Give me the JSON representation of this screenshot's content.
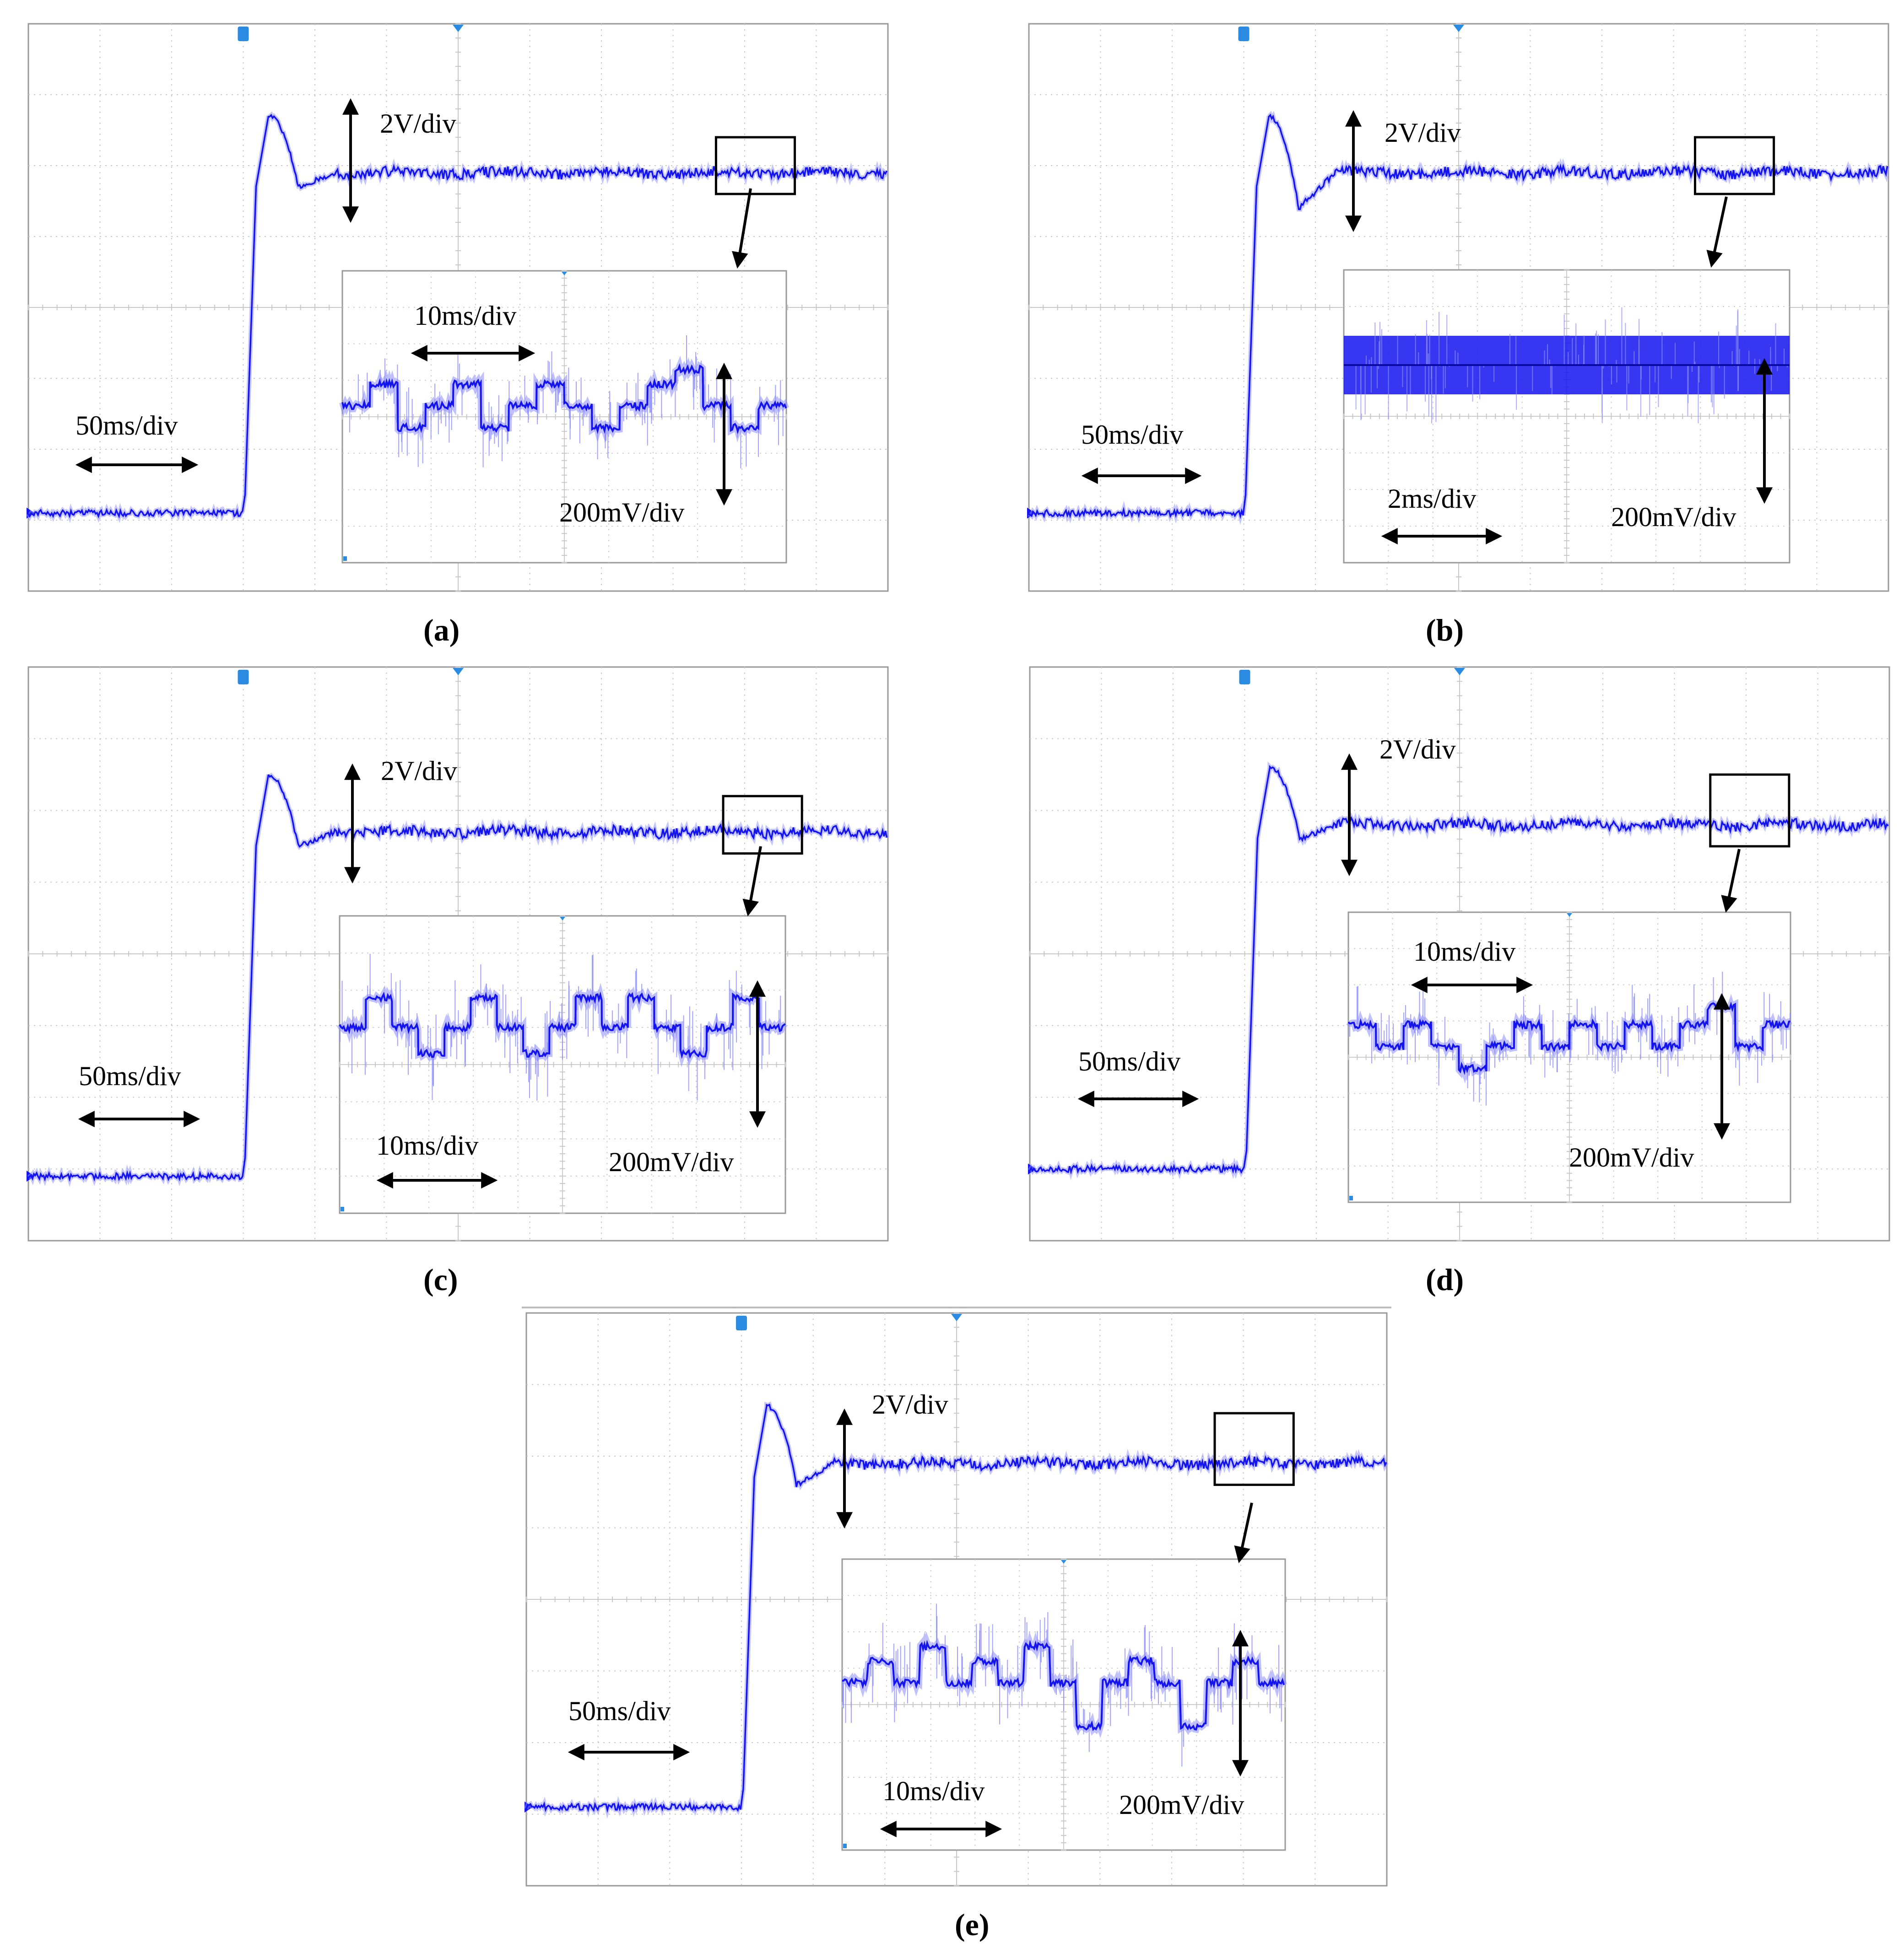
{
  "colors": {
    "trace": "#1414f0",
    "trace_light": "#8c8cff",
    "grid": "#c8c8c8",
    "frame": "#9a9a9a",
    "marker": "#2a8be0",
    "annotation": "#000000"
  },
  "chart_data": [
    {
      "type": "line",
      "panel": "a",
      "caption": "(a)",
      "main": {
        "time_scale": "50ms/div",
        "volt_scale": "2V/div",
        "grid_divisions": [
          12,
          8
        ],
        "x_divisions": [
          0,
          12
        ],
        "y_divisions": [
          0,
          8
        ],
        "step_at_div": 3.0,
        "initial_level_div": 1.1,
        "final_level_div": 5.9,
        "overshoot_div": 6.7,
        "settle_div": 3.9,
        "undershoot_div": 5.7
      },
      "inset": {
        "time_scale": "10ms/div",
        "volt_scale": "200mV/div",
        "x_divisions": [
          0,
          10
        ],
        "y_divisions": [
          0,
          8
        ],
        "levels_div": [
          4.3,
          4.9,
          3.7,
          4.3,
          4.9,
          3.7,
          4.3,
          4.9,
          4.3,
          3.7,
          4.3,
          4.9,
          5.3,
          4.3,
          3.7,
          4.3
        ],
        "spike_range_div": 1.4
      },
      "zoom_box_main_div": {
        "x": [
          9.6,
          10.7
        ],
        "y": [
          5.6,
          6.4
        ]
      }
    },
    {
      "type": "line",
      "panel": "b",
      "caption": "(b)",
      "main": {
        "time_scale": "50ms/div",
        "volt_scale": "2V/div",
        "grid_divisions": [
          12,
          8
        ],
        "x_divisions": [
          0,
          12
        ],
        "y_divisions": [
          0,
          8
        ],
        "step_at_div": 3.0,
        "initial_level_div": 1.1,
        "final_level_div": 5.9,
        "overshoot_div": 6.7,
        "settle_div": 3.9,
        "undershoot_div": 5.4
      },
      "inset": {
        "time_scale": "2ms/div",
        "volt_scale": "200mV/div",
        "x_divisions": [
          0,
          10
        ],
        "y_divisions": [
          0,
          8
        ],
        "levels_div": [
          5.4,
          5.4,
          5.4,
          5.4,
          5.4,
          5.4,
          5.4,
          5.4
        ],
        "band_div": [
          4.6,
          6.2
        ],
        "spike_range_div": 1.6
      },
      "zoom_box_main_div": {
        "x": [
          9.3,
          10.4
        ],
        "y": [
          5.6,
          6.4
        ]
      }
    },
    {
      "type": "line",
      "panel": "c",
      "caption": "(c)",
      "main": {
        "time_scale": "50ms/div",
        "volt_scale": "2V/div",
        "grid_divisions": [
          12,
          8
        ],
        "x_divisions": [
          0,
          12
        ],
        "y_divisions": [
          0,
          8
        ],
        "step_at_div": 3.0,
        "initial_level_div": 0.9,
        "final_level_div": 5.7,
        "overshoot_div": 6.5,
        "settle_div": 3.9,
        "undershoot_div": 5.5
      },
      "inset": {
        "time_scale": "10ms/div",
        "volt_scale": "200mV/div",
        "x_divisions": [
          0,
          10
        ],
        "y_divisions": [
          0,
          8
        ],
        "levels_div": [
          5.0,
          5.8,
          5.0,
          4.3,
          5.0,
          5.8,
          5.0,
          4.3,
          5.0,
          5.8,
          5.0,
          5.8,
          5.0,
          4.3,
          5.0,
          5.8,
          5.0
        ],
        "spike_range_div": 1.6
      },
      "zoom_box_main_div": {
        "x": [
          9.7,
          10.8
        ],
        "y": [
          5.4,
          6.2
        ]
      }
    },
    {
      "type": "line",
      "panel": "d",
      "caption": "(d)",
      "main": {
        "time_scale": "50ms/div",
        "volt_scale": "2V/div",
        "grid_divisions": [
          12,
          8
        ],
        "x_divisions": [
          0,
          12
        ],
        "y_divisions": [
          0,
          8
        ],
        "step_at_div": 3.0,
        "initial_level_div": 1.0,
        "final_level_div": 5.8,
        "overshoot_div": 6.6,
        "settle_div": 3.9,
        "undershoot_div": 5.6
      },
      "inset": {
        "time_scale": "10ms/div",
        "volt_scale": "200mV/div",
        "x_divisions": [
          0,
          10
        ],
        "y_divisions": [
          0,
          8
        ],
        "levels_div": [
          4.9,
          4.3,
          4.9,
          4.3,
          3.7,
          4.3,
          4.9,
          4.3,
          4.9,
          4.3,
          4.9,
          4.3,
          4.9,
          5.4,
          4.3,
          4.9
        ],
        "spike_range_div": 1.4
      },
      "zoom_box_main_div": {
        "x": [
          9.5,
          10.6
        ],
        "y": [
          5.5,
          6.5
        ]
      }
    },
    {
      "type": "line",
      "panel": "e",
      "caption": "(e)",
      "main": {
        "time_scale": "50ms/div",
        "volt_scale": "2V/div",
        "grid_divisions": [
          12,
          8
        ],
        "x_divisions": [
          0,
          12
        ],
        "y_divisions": [
          0,
          8
        ],
        "step_at_div": 3.0,
        "initial_level_div": 1.1,
        "final_level_div": 5.9,
        "overshoot_div": 6.7,
        "settle_div": 3.9,
        "undershoot_div": 5.6
      },
      "inset": {
        "time_scale": "10ms/div",
        "volt_scale": "200mV/div",
        "x_divisions": [
          0,
          10
        ],
        "y_divisions": [
          0,
          8
        ],
        "levels_div": [
          4.6,
          5.2,
          4.6,
          5.6,
          4.6,
          5.2,
          4.6,
          5.6,
          4.6,
          3.4,
          4.6,
          5.2,
          4.6,
          3.4,
          4.6,
          5.2,
          4.6
        ],
        "spike_range_div": 1.5
      },
      "zoom_box_main_div": {
        "x": [
          9.6,
          10.7
        ],
        "y": [
          5.6,
          6.6
        ]
      }
    }
  ]
}
